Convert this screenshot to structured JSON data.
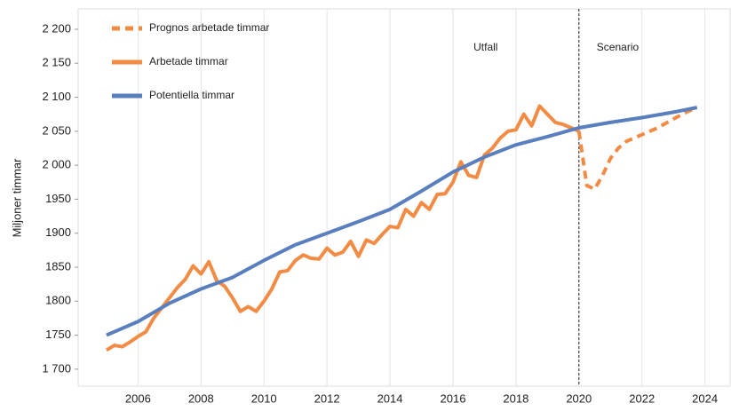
{
  "chart_data": {
    "type": "line",
    "y_label": "Miljoner timmar",
    "xlim": [
      2004.1,
      2024.8
    ],
    "xticks": [
      2006,
      2008,
      2010,
      2012,
      2014,
      2016,
      2018,
      2020,
      2022,
      2024
    ],
    "ylim": [
      1675,
      2230
    ],
    "yticks": [
      {
        "value": 1700,
        "label": "1 700"
      },
      1750,
      1800,
      1850,
      1900,
      1950,
      {
        "value": 2000,
        "label": "2 000"
      },
      {
        "value": 2050,
        "label": "2 050"
      },
      {
        "value": 2100,
        "label": "2 100"
      },
      {
        "value": 2150,
        "label": "2 150"
      },
      {
        "value": 2200,
        "label": "2 200"
      }
    ],
    "grid": true,
    "legend": "top-left",
    "vline": 2020,
    "vline_labels": [
      "Utfall",
      "Scenario"
    ],
    "series": [
      {
        "name": "Prognos arbetade timmar",
        "color": "#f28c45",
        "dashed": true,
        "x": [
          2020,
          2020.25,
          2020.5,
          2020.75,
          2021,
          2021.25,
          2021.5,
          2021.75,
          2022,
          2022.5,
          2023,
          2023.5,
          2023.75
        ],
        "values": [
          2050,
          1970,
          1965,
          1985,
          2010,
          2025,
          2035,
          2040,
          2045,
          2055,
          2068,
          2080,
          2085
        ]
      },
      {
        "name": "Arbetade timmar",
        "color": "#f28c45",
        "dashed": false,
        "x": [
          2005,
          2005.25,
          2005.5,
          2005.75,
          2006,
          2006.25,
          2006.5,
          2006.75,
          2007,
          2007.25,
          2007.5,
          2007.75,
          2008,
          2008.25,
          2008.5,
          2008.75,
          2009,
          2009.25,
          2009.5,
          2009.75,
          2010,
          2010.25,
          2010.5,
          2010.75,
          2011,
          2011.25,
          2011.5,
          2011.75,
          2012,
          2012.25,
          2012.5,
          2012.75,
          2013,
          2013.25,
          2013.5,
          2013.75,
          2014,
          2014.25,
          2014.5,
          2014.75,
          2015,
          2015.25,
          2015.5,
          2015.75,
          2016,
          2016.25,
          2016.5,
          2016.75,
          2017,
          2017.25,
          2017.5,
          2017.75,
          2018,
          2018.25,
          2018.5,
          2018.75,
          2019,
          2019.25,
          2019.5,
          2019.75,
          2020
        ],
        "values": [
          1728,
          1735,
          1733,
          1740,
          1748,
          1755,
          1775,
          1790,
          1805,
          1820,
          1832,
          1852,
          1840,
          1858,
          1830,
          1822,
          1805,
          1785,
          1792,
          1785,
          1800,
          1818,
          1843,
          1845,
          1860,
          1868,
          1863,
          1862,
          1878,
          1868,
          1872,
          1888,
          1866,
          1890,
          1885,
          1898,
          1910,
          1908,
          1935,
          1925,
          1945,
          1935,
          1957,
          1958,
          1975,
          2005,
          1985,
          1982,
          2015,
          2025,
          2040,
          2050,
          2052,
          2075,
          2058,
          2087,
          2075,
          2063,
          2060,
          2055,
          2050
        ]
      },
      {
        "name": "Potentiella timmar",
        "color": "#5a7fbf",
        "dashed": false,
        "x": [
          2005,
          2006,
          2007,
          2008,
          2009,
          2010,
          2011,
          2012,
          2013,
          2014,
          2015,
          2016,
          2017,
          2018,
          2019,
          2020,
          2021,
          2022,
          2023,
          2023.75
        ],
        "values": [
          1750,
          1770,
          1797,
          1818,
          1835,
          1860,
          1883,
          1900,
          1917,
          1935,
          1962,
          1990,
          2012,
          2030,
          2042,
          2055,
          2063,
          2070,
          2078,
          2085
        ]
      }
    ]
  }
}
